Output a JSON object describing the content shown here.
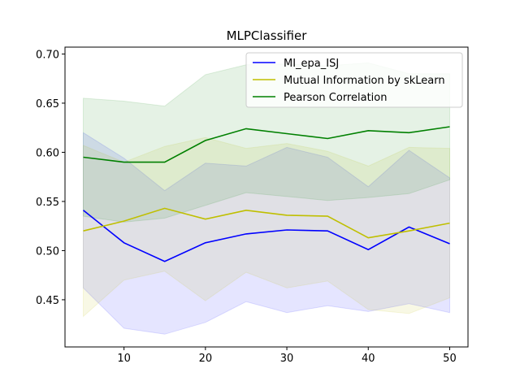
{
  "chart_data": {
    "type": "line",
    "title": "MLPClassifier",
    "xlabel": "",
    "ylabel": "",
    "x": [
      5,
      10,
      15,
      20,
      25,
      30,
      35,
      40,
      45,
      50
    ],
    "xlim": [
      2.75,
      52.25
    ],
    "ylim": [
      0.402,
      0.707
    ],
    "xticks": [
      10,
      20,
      30,
      40,
      50
    ],
    "yticks": [
      0.45,
      0.5,
      0.55,
      0.6,
      0.65,
      0.7
    ],
    "ytick_labels": [
      "0.45",
      "0.50",
      "0.55",
      "0.60",
      "0.65",
      "0.70"
    ],
    "xtick_labels": [
      "10",
      "20",
      "30",
      "40",
      "50"
    ],
    "grid": false,
    "legend_position": "upper-right",
    "series": [
      {
        "name": "MI_epa_ISJ",
        "color": "#0000ff",
        "values": [
          0.541,
          0.508,
          0.489,
          0.508,
          0.517,
          0.521,
          0.52,
          0.501,
          0.524,
          0.507
        ],
        "upper": [
          0.62,
          0.594,
          0.561,
          0.589,
          0.586,
          0.605,
          0.595,
          0.565,
          0.602,
          0.574
        ],
        "lower": [
          0.462,
          0.421,
          0.415,
          0.427,
          0.448,
          0.437,
          0.444,
          0.438,
          0.446,
          0.437
        ]
      },
      {
        "name": "Mutual Information by skLearn",
        "color": "#bfbf00",
        "values": [
          0.52,
          0.53,
          0.543,
          0.532,
          0.541,
          0.536,
          0.535,
          0.513,
          0.52,
          0.528
        ],
        "upper": [
          0.607,
          0.59,
          0.606,
          0.615,
          0.604,
          0.609,
          0.601,
          0.586,
          0.605,
          0.604
        ],
        "lower": [
          0.433,
          0.47,
          0.479,
          0.449,
          0.478,
          0.462,
          0.469,
          0.44,
          0.436,
          0.452
        ]
      },
      {
        "name": "Pearson Correlation",
        "color": "#008000",
        "values": [
          0.595,
          0.59,
          0.59,
          0.612,
          0.624,
          0.619,
          0.614,
          0.622,
          0.62,
          0.626
        ],
        "upper": [
          0.655,
          0.652,
          0.647,
          0.679,
          0.689,
          0.69,
          0.688,
          0.691,
          0.68,
          0.68
        ],
        "lower": [
          0.535,
          0.529,
          0.533,
          0.546,
          0.559,
          0.555,
          0.551,
          0.554,
          0.558,
          0.572
        ]
      }
    ]
  }
}
